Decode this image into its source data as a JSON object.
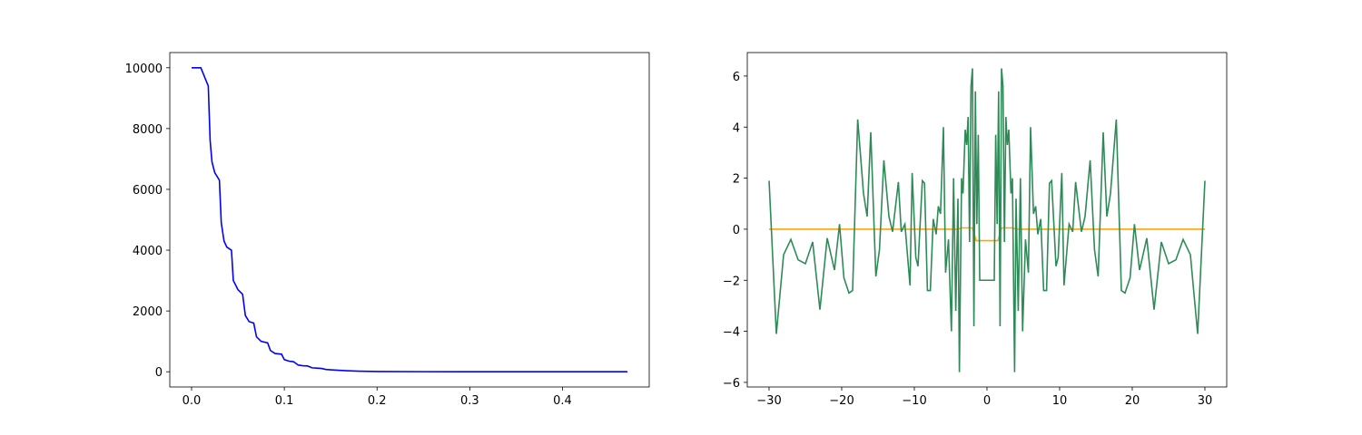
{
  "chart_data": [
    {
      "type": "line",
      "series": [
        {
          "color": "#0000ff",
          "x": [
            0,
            0.01,
            0.018,
            0.02,
            0.022,
            0.025,
            0.03,
            0.032,
            0.035,
            0.038,
            0.043,
            0.045,
            0.05,
            0.055,
            0.058,
            0.062,
            0.067,
            0.07,
            0.075,
            0.082,
            0.085,
            0.09,
            0.097,
            0.1,
            0.105,
            0.11,
            0.115,
            0.12,
            0.125,
            0.13,
            0.135,
            0.14,
            0.145,
            0.15,
            0.16,
            0.17,
            0.18,
            0.2,
            0.25,
            0.3,
            0.47
          ],
          "values": [
            10000,
            10000,
            9400,
            7600,
            6900,
            6550,
            6300,
            4900,
            4300,
            4100,
            4000,
            3000,
            2700,
            2550,
            1850,
            1650,
            1600,
            1150,
            1000,
            950,
            700,
            600,
            580,
            400,
            350,
            330,
            220,
            200,
            190,
            130,
            120,
            110,
            75,
            65,
            45,
            30,
            20,
            10,
            3,
            1,
            0
          ]
        }
      ],
      "xlim": [
        -0.0235,
        0.4935
      ],
      "xticks": [
        {
          "value": 0,
          "label": "0.0"
        },
        0.1,
        0.2,
        0.3,
        0.4
      ],
      "ylim": [
        -500,
        10500
      ],
      "yticks": [
        0,
        2000,
        4000,
        6000,
        8000,
        10000
      ]
    },
    {
      "type": "line",
      "series": [
        {
          "color": "#ffa500",
          "x": [
            -30,
            -4,
            -3.5,
            -2,
            -1.5,
            1.5,
            2,
            3.5,
            4,
            30
          ],
          "values": [
            0,
            0,
            0.05,
            0.05,
            -0.45,
            -0.45,
            0.05,
            0.05,
            0,
            0
          ]
        },
        {
          "color": "#2e8b57",
          "x": [
            -30,
            -29,
            -28,
            -27,
            -26,
            -25,
            -24,
            -23,
            -22,
            -21,
            -20.3,
            -19.7,
            -19,
            -18.5,
            -17.8,
            -17,
            -16.5,
            -16,
            -15.3,
            -14.8,
            -14.2,
            -13.5,
            -13,
            -12.2,
            -11.8,
            -11.3,
            -10.6,
            -10.3,
            -9.8,
            -9.5,
            -8.9,
            -8.6,
            -8.2,
            -7.8,
            -7.4,
            -7,
            -6.7,
            -6.4,
            -6,
            -5.7,
            -5.3,
            -4.9,
            -4.6,
            -4.3,
            -4,
            -3.8,
            -3.5,
            -3.3,
            -3,
            -2.8,
            -2.6,
            -2.4,
            -2.2,
            -2,
            -1.8,
            -1.6,
            -1.4,
            -1.2,
            -1,
            1,
            1.2,
            1.4,
            1.6,
            1.8,
            2,
            2.2,
            2.4,
            2.6,
            2.8,
            3,
            3.3,
            3.5,
            3.8,
            4,
            4.3,
            4.6,
            4.9,
            5.3,
            5.7,
            6,
            6.4,
            6.7,
            7,
            7.4,
            7.8,
            8.2,
            8.6,
            8.9,
            9.5,
            9.8,
            10.3,
            10.6,
            11.3,
            11.8,
            12.2,
            13,
            13.5,
            14.2,
            14.8,
            15.3,
            16,
            16.5,
            17,
            17.8,
            18.5,
            19,
            19.7,
            20.3,
            21,
            22,
            23,
            24,
            25,
            26,
            27,
            28,
            29,
            30
          ],
          "values": [
            1.9,
            -4.1,
            -1.0,
            -0.4,
            -1.2,
            -1.35,
            -0.5,
            -3.15,
            -0.35,
            -1.6,
            0.2,
            -1.9,
            -2.5,
            -2.4,
            4.3,
            1.4,
            0.5,
            3.8,
            -1.85,
            -0.8,
            2.7,
            0.5,
            -0.1,
            1.85,
            -0.1,
            0.2,
            -2.2,
            2.2,
            -1.1,
            -1.45,
            1.9,
            1.8,
            -2.4,
            -2.4,
            0.4,
            -0.2,
            0.9,
            0.6,
            4.0,
            -1.7,
            -0.4,
            -4.0,
            2.0,
            -3.2,
            1.2,
            -5.6,
            2.0,
            1.4,
            3.9,
            3.3,
            4.4,
            -0.5,
            5.6,
            6.3,
            -3.8,
            5.4,
            0.2,
            3.7,
            -2.0,
            -2.0,
            3.7,
            0.2,
            5.4,
            -3.8,
            6.3,
            5.6,
            -0.5,
            4.4,
            3.3,
            3.9,
            1.4,
            2.0,
            -5.6,
            1.2,
            -3.2,
            2.0,
            -4.0,
            -0.4,
            -1.7,
            4.0,
            0.6,
            0.9,
            -0.2,
            0.4,
            -2.4,
            -2.4,
            1.8,
            1.9,
            -1.45,
            -1.1,
            2.2,
            -2.2,
            0.2,
            -0.1,
            1.85,
            -0.1,
            0.5,
            2.7,
            -0.8,
            -1.85,
            3.8,
            0.5,
            1.4,
            4.3,
            -2.4,
            -2.5,
            -1.9,
            0.2,
            -1.6,
            -0.35,
            -3.15,
            -0.5,
            -1.35,
            -1.2,
            -0.4,
            -1.0,
            -4.1,
            1.9
          ]
        }
      ],
      "xlim": [
        -33,
        33
      ],
      "xticks": [
        {
          "value": -30,
          "label": "−30"
        },
        {
          "value": -20,
          "label": "−20"
        },
        {
          "value": -10,
          "label": "−10"
        },
        0,
        10,
        20,
        30
      ],
      "ylim": [
        -6.18,
        6.92
      ],
      "yticks": [
        {
          "value": -6,
          "label": "−6"
        },
        {
          "value": -4,
          "label": "−4"
        },
        {
          "value": -2,
          "label": "−2"
        },
        0,
        2,
        4,
        6
      ]
    }
  ]
}
